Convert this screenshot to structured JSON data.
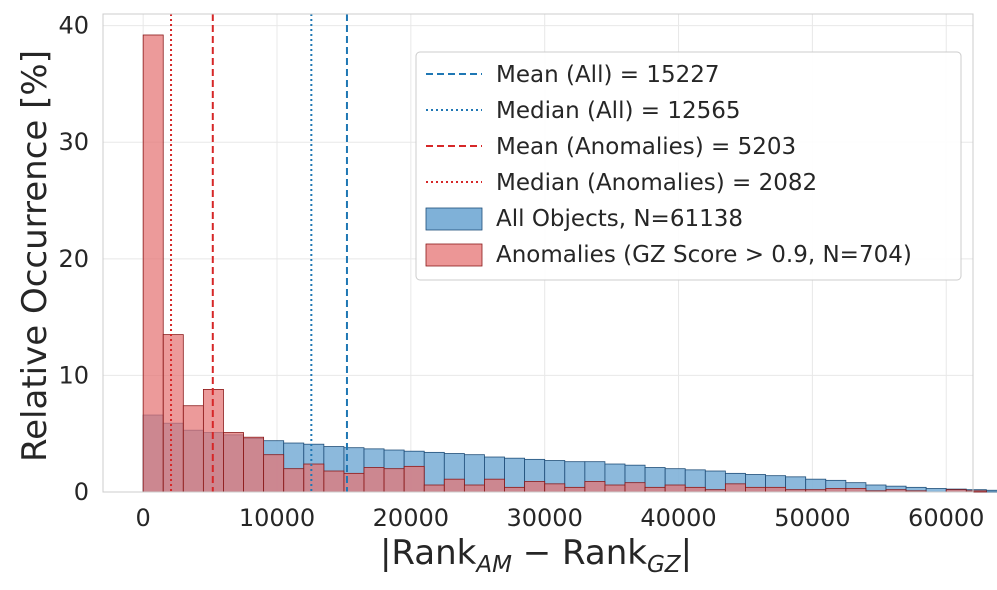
{
  "chart_data": {
    "type": "histogram",
    "title": "",
    "xlabel_main": "|Rank",
    "xlabel_sub1": "AM",
    "xlabel_minus": " − Rank",
    "xlabel_sub2": "GZ",
    "xlabel_end": "|",
    "ylabel": "Relative Occurrence [%]",
    "xlim": [
      -3000,
      62000
    ],
    "ylim": [
      0,
      41
    ],
    "bin_width": 1500,
    "bin_start": 0,
    "x_ticks": [
      0,
      10000,
      20000,
      30000,
      40000,
      50000,
      60000
    ],
    "y_ticks": [
      0,
      10,
      20,
      30,
      40
    ],
    "grid": true,
    "legend_position": "upper-right",
    "series": [
      {
        "name": "All Objects, N=61138",
        "color": "#7fb1d8",
        "edge": "#1f4e79",
        "values": [
          6.6,
          5.9,
          5.3,
          5.1,
          4.9,
          4.6,
          4.4,
          4.2,
          4.1,
          3.9,
          3.8,
          3.7,
          3.6,
          3.5,
          3.4,
          3.3,
          3.2,
          3.0,
          2.9,
          2.8,
          2.7,
          2.6,
          2.6,
          2.4,
          2.3,
          2.1,
          2.0,
          1.9,
          1.8,
          1.6,
          1.5,
          1.4,
          1.3,
          1.1,
          1.0,
          0.8,
          0.6,
          0.5,
          0.4,
          0.3,
          0.25,
          0.2,
          0.15,
          0.1,
          0.1,
          0.05,
          0.05,
          0.02,
          0.01,
          0.01
        ]
      },
      {
        "name": "Anomalies (GZ Score > 0.9, N=704)",
        "color": "#e57373",
        "edge": "#8b1a1a",
        "values": [
          39.2,
          13.5,
          7.4,
          8.8,
          5.1,
          4.7,
          3.2,
          2.0,
          2.4,
          1.8,
          1.6,
          2.1,
          2.0,
          2.2,
          0.6,
          1.1,
          0.6,
          1.1,
          0.4,
          0.9,
          0.7,
          0.4,
          0.9,
          0.6,
          0.8,
          0.4,
          0.6,
          0.4,
          0.2,
          0.7,
          0.4,
          0.4,
          0.2,
          0.2,
          0.3,
          0.3,
          0.1,
          0.2,
          0.1,
          0,
          0.2,
          0.1,
          0,
          0.3,
          0,
          0,
          0,
          0,
          0,
          0
        ]
      }
    ],
    "vlines": [
      {
        "name": "Mean (All) = 15227",
        "value": 15227,
        "color": "#1f77b4",
        "style": "dashed"
      },
      {
        "name": "Median (All) = 12565",
        "value": 12565,
        "color": "#1f77b4",
        "style": "dotted"
      },
      {
        "name": "Mean (Anomalies) = 5203",
        "value": 5203,
        "color": "#d62728",
        "style": "dashed"
      },
      {
        "name": "Median (Anomalies) = 2082",
        "value": 2082,
        "color": "#d62728",
        "style": "dotted"
      }
    ],
    "legend_order": [
      "Mean (All) = 15227",
      "Median (All) = 12565",
      "Mean (Anomalies) = 5203",
      "Median (Anomalies) = 2082",
      "All Objects, N=61138",
      "Anomalies (GZ Score > 0.9, N=704)"
    ]
  }
}
